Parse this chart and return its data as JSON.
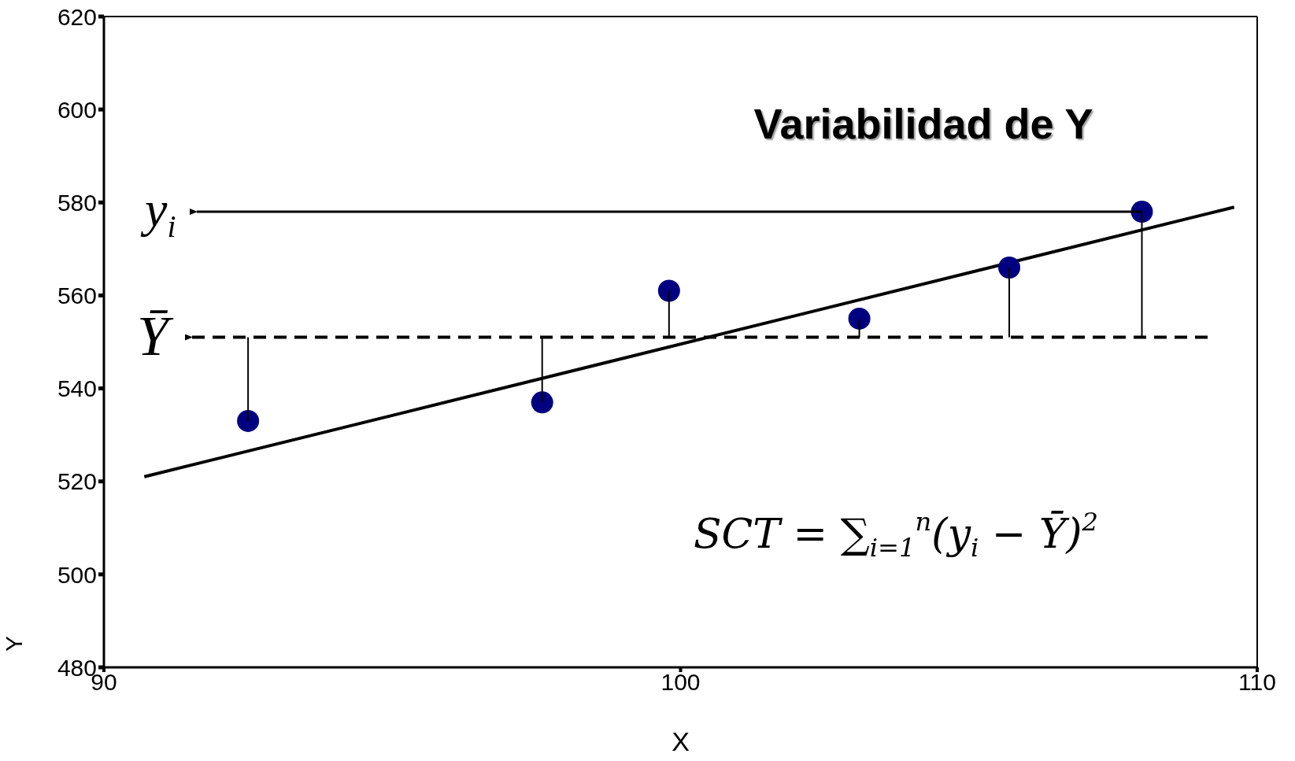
{
  "chart_data": {
    "type": "scatter",
    "title": "Variabilidad de Y",
    "xlabel": "X",
    "ylabel": "Y",
    "xlim": [
      90,
      110
    ],
    "xticks": [
      90,
      100,
      110
    ],
    "ylim": [
      480,
      620
    ],
    "yticks": [
      480,
      500,
      520,
      540,
      560,
      580,
      600,
      620
    ],
    "series": [
      {
        "color": "#000080",
        "marker": "circle",
        "x": [
          92.5,
          97.6,
          99.8,
          103.1,
          105.7,
          108.0
        ],
        "values": [
          533,
          537,
          561,
          555,
          566,
          578
        ],
        "errors": [
          [
            533,
            551
          ],
          [
            537,
            551
          ],
          [
            551,
            561
          ],
          [
            551,
            555
          ],
          [
            551,
            566
          ],
          [
            551,
            578
          ]
        ]
      },
      {
        "type": "line",
        "color": "#000000",
        "x": [
          90.7,
          109.6
        ],
        "values": [
          521,
          579
        ],
        "line_style": "solid"
      }
    ],
    "ref_lines": [
      {
        "axis": "y",
        "value": 551,
        "label": "Ȳ",
        "line_style": "dashed",
        "color": "#000000"
      }
    ],
    "annotations": [
      {
        "text": "y$_{i}$",
        "x": 108.0,
        "y": 578
      },
      "SCT = ∑$_{i=1}$$^{n}$(y$_{i}$ − Ȳ)$^{2}$"
    ]
  }
}
